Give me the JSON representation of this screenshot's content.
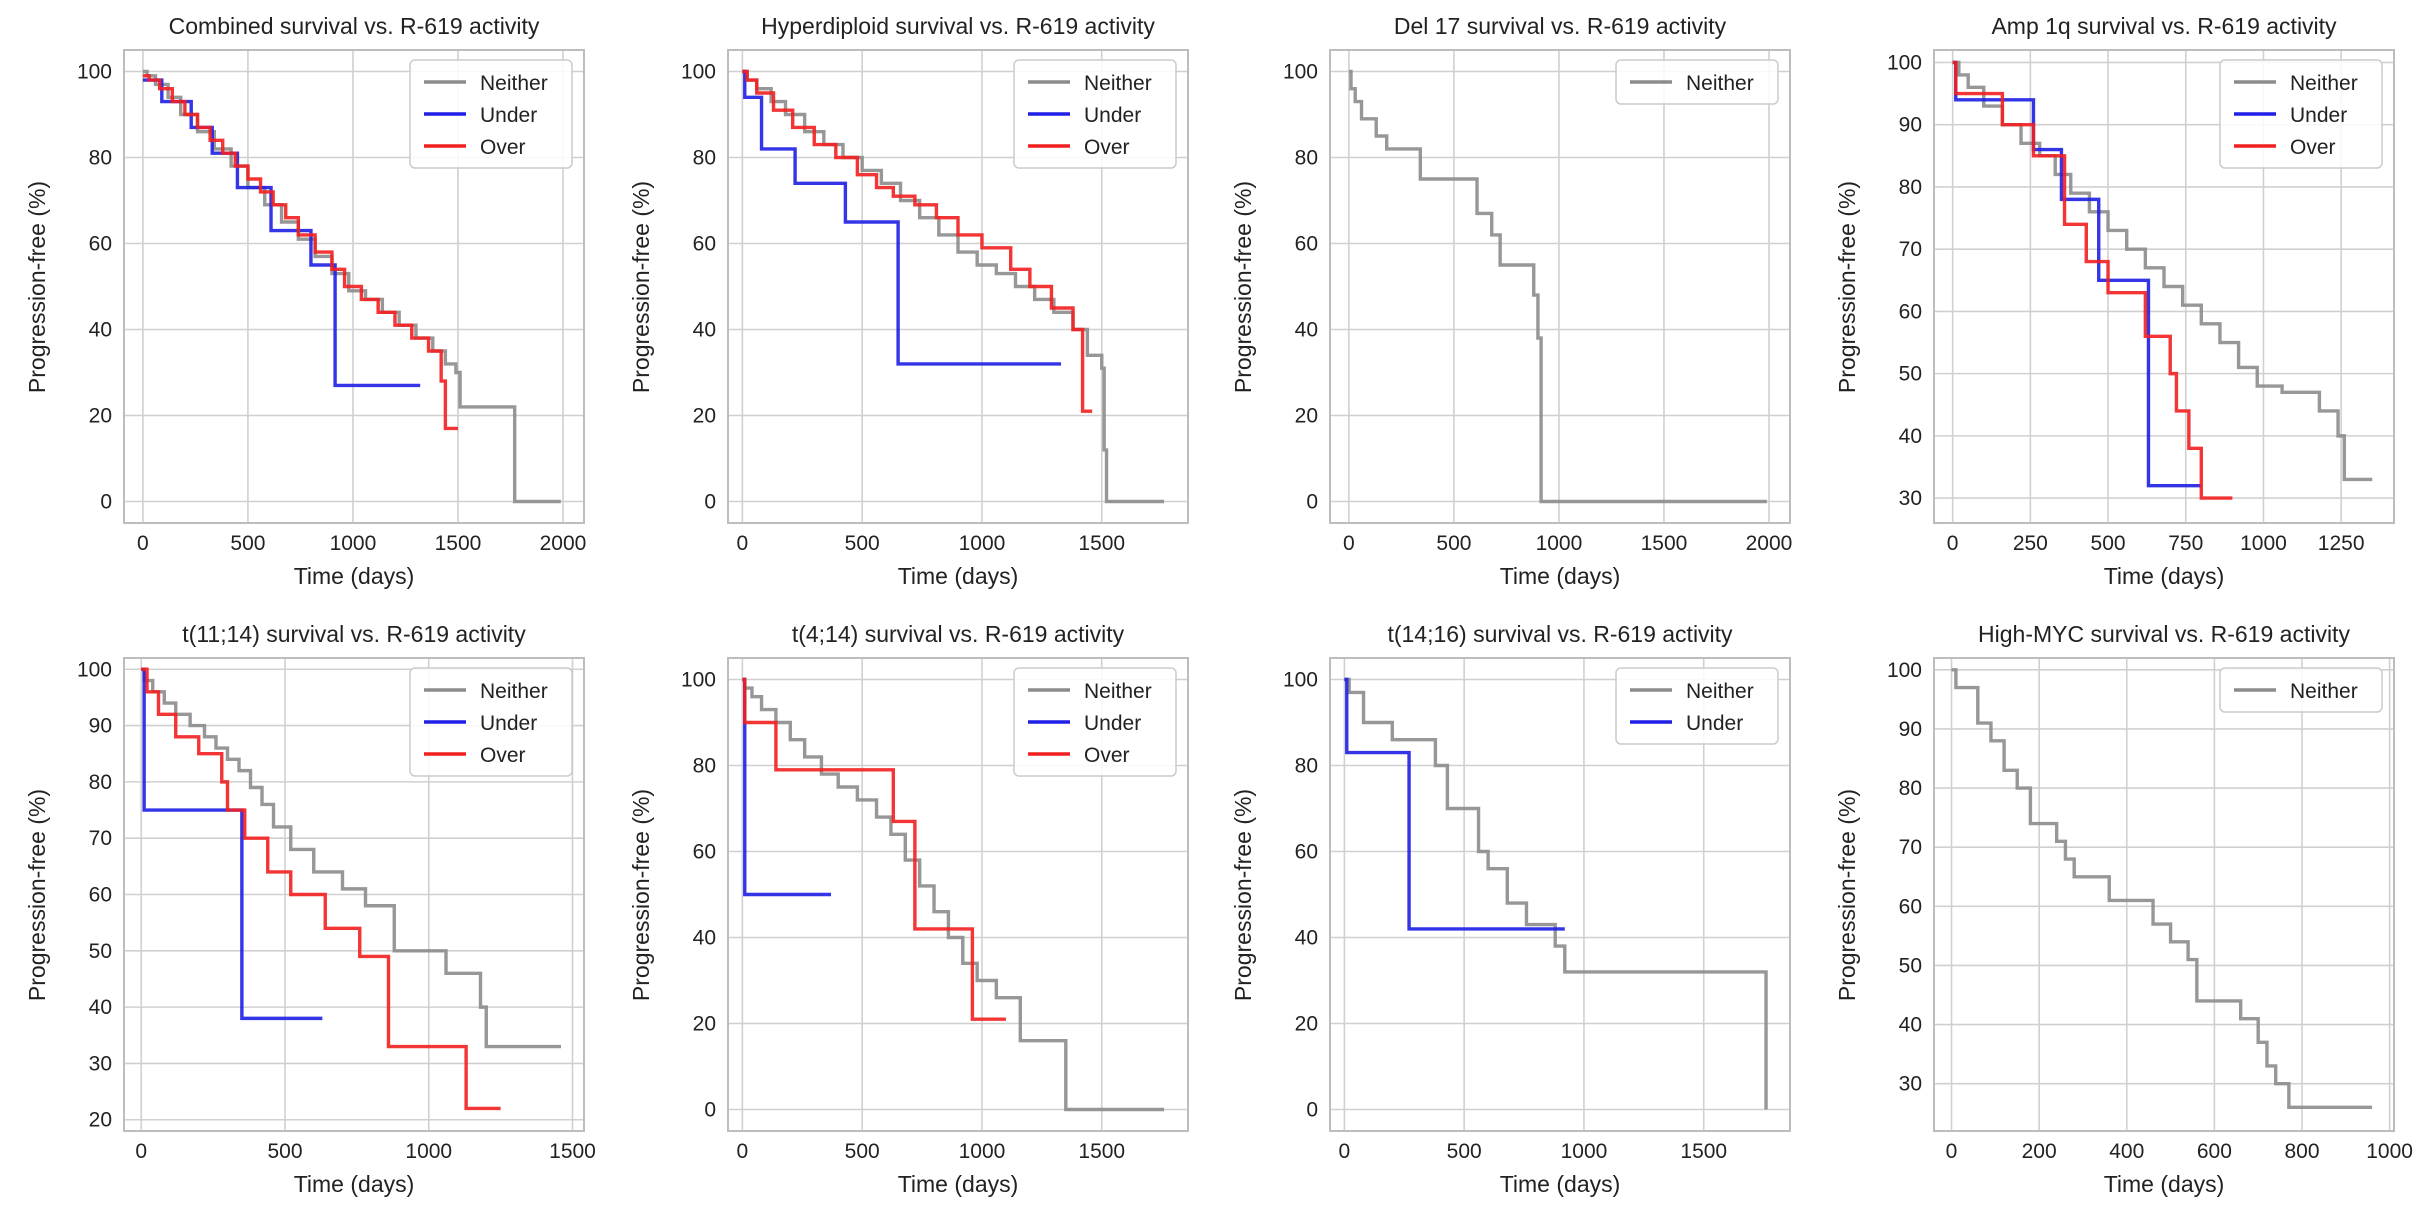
{
  "colors": {
    "Neither": "#8c8c8c",
    "Under": "#1f1fe6",
    "Over": "#f21f1f",
    "grid": "#d0d0d0",
    "frame": "#bdbdbd"
  },
  "chart_data": [
    {
      "type": "line",
      "step": true,
      "title": "Combined survival vs. R-619 activity",
      "xlabel": "Time (days)",
      "ylabel": "Progression-free (%)",
      "xlim": [
        -90,
        2100
      ],
      "ylim": [
        -5,
        105
      ],
      "xticks": [
        0,
        500,
        1000,
        1500,
        2000
      ],
      "yticks": [
        0,
        20,
        40,
        60,
        80,
        100
      ],
      "legend": [
        "Neither",
        "Under",
        "Over"
      ],
      "legend_position": "top-right",
      "series": [
        {
          "name": "Neither",
          "x": [
            0,
            20,
            60,
            120,
            180,
            260,
            340,
            420,
            500,
            580,
            660,
            740,
            820,
            900,
            980,
            1060,
            1140,
            1220,
            1300,
            1380,
            1440,
            1490,
            1510,
            1760,
            1770,
            1990
          ],
          "y": [
            100,
            99,
            97,
            94,
            90,
            86,
            82,
            78,
            73,
            69,
            65,
            61,
            57,
            53,
            49,
            47,
            44,
            41,
            38,
            35,
            32,
            30,
            22,
            22,
            0,
            0
          ]
        },
        {
          "name": "Under",
          "x": [
            0,
            90,
            230,
            330,
            450,
            610,
            800,
            915,
            1320
          ],
          "y": [
            98,
            93,
            87,
            81,
            73,
            63,
            55,
            27,
            27
          ]
        },
        {
          "name": "Over",
          "x": [
            0,
            30,
            80,
            140,
            200,
            260,
            320,
            380,
            440,
            500,
            560,
            620,
            680,
            740,
            820,
            900,
            960,
            1040,
            1120,
            1200,
            1280,
            1360,
            1420,
            1440,
            1500
          ],
          "y": [
            99,
            98,
            96,
            93,
            90,
            87,
            84,
            81,
            78,
            75,
            72,
            69,
            66,
            62,
            58,
            54,
            50,
            47,
            44,
            41,
            38,
            35,
            28,
            17,
            17
          ]
        }
      ]
    },
    {
      "type": "line",
      "step": true,
      "title": "Hyperdiploid survival vs. R-619 activity",
      "xlabel": "Time (days)",
      "ylabel": "Progression-free (%)",
      "xlim": [
        -60,
        1860
      ],
      "ylim": [
        -5,
        105
      ],
      "xticks": [
        0,
        500,
        1000,
        1500
      ],
      "yticks": [
        0,
        20,
        40,
        60,
        80,
        100
      ],
      "legend": [
        "Neither",
        "Under",
        "Over"
      ],
      "legend_position": "top-right",
      "series": [
        {
          "name": "Neither",
          "x": [
            0,
            20,
            60,
            120,
            180,
            260,
            340,
            420,
            500,
            580,
            660,
            740,
            820,
            900,
            980,
            1060,
            1140,
            1220,
            1300,
            1380,
            1440,
            1500,
            1510,
            1520,
            1760
          ],
          "y": [
            100,
            98,
            96,
            93,
            90,
            86,
            83,
            80,
            77,
            74,
            70,
            66,
            62,
            58,
            55,
            53,
            50,
            47,
            44,
            40,
            34,
            31,
            12,
            0,
            0
          ]
        },
        {
          "name": "Under",
          "x": [
            0,
            10,
            80,
            220,
            430,
            650,
            1330
          ],
          "y": [
            100,
            94,
            82,
            74,
            65,
            32,
            32
          ]
        },
        {
          "name": "Over",
          "x": [
            0,
            20,
            60,
            130,
            210,
            300,
            390,
            480,
            560,
            630,
            720,
            810,
            900,
            1000,
            1120,
            1200,
            1290,
            1380,
            1420,
            1460
          ],
          "y": [
            100,
            98,
            95,
            91,
            87,
            83,
            80,
            76,
            73,
            71,
            69,
            66,
            62,
            59,
            54,
            50,
            45,
            40,
            21,
            21
          ]
        }
      ]
    },
    {
      "type": "line",
      "step": true,
      "title": "Del 17 survival vs. R-619 activity",
      "xlabel": "Time (days)",
      "ylabel": "Progression-free (%)",
      "xlim": [
        -90,
        2100
      ],
      "ylim": [
        -5,
        105
      ],
      "xticks": [
        0,
        500,
        1000,
        1500,
        2000
      ],
      "yticks": [
        0,
        20,
        40,
        60,
        80,
        100
      ],
      "legend": [
        "Neither"
      ],
      "legend_position": "top-right",
      "series": [
        {
          "name": "Neither",
          "x": [
            0,
            10,
            30,
            60,
            130,
            180,
            340,
            610,
            680,
            720,
            880,
            900,
            915,
            1990
          ],
          "y": [
            100,
            96,
            93,
            89,
            85,
            82,
            75,
            67,
            62,
            55,
            48,
            38,
            0,
            0
          ]
        }
      ]
    },
    {
      "type": "line",
      "step": true,
      "title": "Amp 1q survival vs. R-619 activity",
      "xlabel": "Time (days)",
      "ylabel": "Progression-free (%)",
      "xlim": [
        -60,
        1420
      ],
      "ylim": [
        26,
        102
      ],
      "xticks": [
        0,
        250,
        500,
        750,
        1000,
        1250
      ],
      "yticks": [
        30,
        40,
        50,
        60,
        70,
        80,
        90,
        100
      ],
      "legend": [
        "Neither",
        "Under",
        "Over"
      ],
      "legend_position": "top-right",
      "series": [
        {
          "name": "Neither",
          "x": [
            0,
            20,
            50,
            100,
            160,
            220,
            280,
            330,
            380,
            440,
            500,
            560,
            620,
            680,
            740,
            800,
            860,
            920,
            980,
            1060,
            1180,
            1240,
            1260,
            1350
          ],
          "y": [
            100,
            98,
            96,
            93,
            90,
            87,
            85,
            82,
            79,
            76,
            73,
            70,
            67,
            64,
            61,
            58,
            55,
            51,
            48,
            47,
            44,
            40,
            33,
            33
          ]
        },
        {
          "name": "Under",
          "x": [
            0,
            10,
            260,
            350,
            470,
            630,
            800
          ],
          "y": [
            100,
            94,
            86,
            78,
            65,
            32,
            32
          ]
        },
        {
          "name": "Over",
          "x": [
            0,
            10,
            160,
            260,
            360,
            430,
            500,
            620,
            700,
            720,
            760,
            800,
            900
          ],
          "y": [
            100,
            95,
            90,
            85,
            74,
            68,
            63,
            56,
            50,
            44,
            38,
            30,
            30
          ]
        }
      ]
    },
    {
      "type": "line",
      "step": true,
      "title": "t(11;14) survival vs. R-619 activity",
      "xlabel": "Time (days)",
      "ylabel": "Progression-free (%)",
      "xlim": [
        -60,
        1540
      ],
      "ylim": [
        18,
        102
      ],
      "xticks": [
        0,
        500,
        1000,
        1500
      ],
      "yticks": [
        20,
        30,
        40,
        50,
        60,
        70,
        80,
        90,
        100
      ],
      "legend": [
        "Neither",
        "Under",
        "Over"
      ],
      "legend_position": "top-right",
      "series": [
        {
          "name": "Neither",
          "x": [
            0,
            10,
            40,
            80,
            120,
            170,
            220,
            260,
            300,
            340,
            380,
            420,
            460,
            520,
            600,
            700,
            780,
            880,
            1060,
            1180,
            1200,
            1460
          ],
          "y": [
            100,
            98,
            96,
            94,
            92,
            90,
            88,
            86,
            84,
            82,
            79,
            76,
            72,
            68,
            64,
            61,
            58,
            50,
            46,
            40,
            33,
            33
          ]
        },
        {
          "name": "Under",
          "x": [
            0,
            10,
            350,
            630
          ],
          "y": [
            100,
            75,
            38,
            38
          ]
        },
        {
          "name": "Over",
          "x": [
            0,
            20,
            60,
            120,
            200,
            280,
            300,
            360,
            440,
            520,
            640,
            760,
            860,
            1130,
            1250
          ],
          "y": [
            100,
            96,
            92,
            88,
            85,
            80,
            75,
            70,
            64,
            60,
            54,
            49,
            33,
            22,
            22
          ]
        }
      ]
    },
    {
      "type": "line",
      "step": true,
      "title": "t(4;14) survival vs. R-619 activity",
      "xlabel": "Time (days)",
      "ylabel": "Progression-free (%)",
      "xlim": [
        -60,
        1860
      ],
      "ylim": [
        -5,
        105
      ],
      "xticks": [
        0,
        500,
        1000,
        1500
      ],
      "yticks": [
        0,
        20,
        40,
        60,
        80,
        100
      ],
      "legend": [
        "Neither",
        "Under",
        "Over"
      ],
      "legend_position": "top-right",
      "series": [
        {
          "name": "Neither",
          "x": [
            0,
            10,
            40,
            80,
            140,
            200,
            260,
            330,
            400,
            480,
            560,
            620,
            680,
            740,
            800,
            860,
            920,
            980,
            1060,
            1160,
            1350,
            1760
          ],
          "y": [
            100,
            98,
            96,
            93,
            90,
            86,
            82,
            78,
            75,
            72,
            68,
            64,
            58,
            52,
            46,
            40,
            34,
            30,
            26,
            16,
            0,
            0
          ]
        },
        {
          "name": "Under",
          "x": [
            0,
            10,
            370
          ],
          "y": [
            100,
            50,
            50
          ]
        },
        {
          "name": "Over",
          "x": [
            0,
            10,
            140,
            630,
            720,
            960,
            1100
          ],
          "y": [
            100,
            90,
            79,
            67,
            42,
            21,
            21
          ]
        }
      ]
    },
    {
      "type": "line",
      "step": true,
      "title": "t(14;16) survival vs. R-619 activity",
      "xlabel": "Time (days)",
      "ylabel": "Progression-free (%)",
      "xlim": [
        -60,
        1860
      ],
      "ylim": [
        -5,
        105
      ],
      "xticks": [
        0,
        500,
        1000,
        1500
      ],
      "yticks": [
        0,
        20,
        40,
        60,
        80,
        100
      ],
      "legend": [
        "Neither",
        "Under"
      ],
      "legend_position": "top-right",
      "series": [
        {
          "name": "Neither",
          "x": [
            0,
            20,
            80,
            200,
            380,
            430,
            560,
            600,
            680,
            760,
            880,
            920,
            1760
          ],
          "y": [
            100,
            97,
            90,
            86,
            80,
            70,
            60,
            56,
            48,
            43,
            38,
            32,
            0
          ]
        },
        {
          "name": "Under",
          "x": [
            0,
            10,
            270,
            920
          ],
          "y": [
            100,
            83,
            42,
            42
          ]
        }
      ]
    },
    {
      "type": "line",
      "step": true,
      "title": "High-MYC survival vs. R-619 activity",
      "xlabel": "Time (days)",
      "ylabel": "Progression-free (%)",
      "xlim": [
        -40,
        1010
      ],
      "ylim": [
        22,
        102
      ],
      "xticks": [
        0,
        200,
        400,
        600,
        800,
        1000
      ],
      "yticks": [
        30,
        40,
        50,
        60,
        70,
        80,
        90,
        100
      ],
      "legend": [
        "Neither"
      ],
      "legend_position": "top-right",
      "series": [
        {
          "name": "Neither",
          "x": [
            0,
            10,
            60,
            90,
            120,
            150,
            180,
            240,
            260,
            280,
            360,
            460,
            500,
            540,
            560,
            660,
            700,
            720,
            740,
            770,
            960
          ],
          "y": [
            100,
            97,
            91,
            88,
            83,
            80,
            74,
            71,
            68,
            65,
            61,
            57,
            54,
            51,
            44,
            41,
            37,
            33,
            30,
            26,
            26
          ]
        }
      ]
    }
  ]
}
